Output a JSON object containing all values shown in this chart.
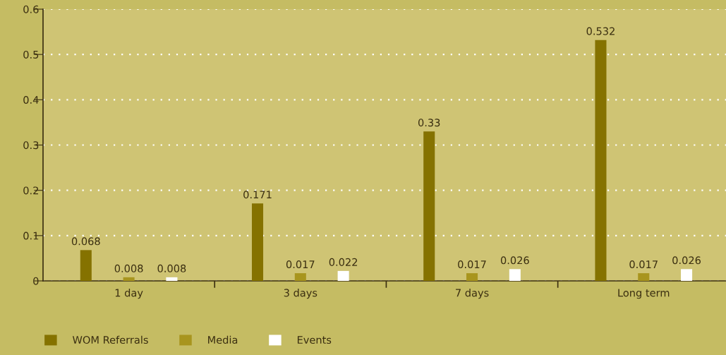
{
  "chart_data": {
    "type": "bar",
    "categories": [
      "1 day",
      "3 days",
      "7 days",
      "Long term"
    ],
    "series": [
      {
        "name": "WOM Referrals",
        "color": "#857200",
        "values": [
          0.068,
          0.171,
          0.33,
          0.532
        ]
      },
      {
        "name": "Media",
        "color": "#a8951e",
        "values": [
          0.008,
          0.017,
          0.017,
          0.017
        ]
      },
      {
        "name": "Events",
        "color": "#ffffff",
        "values": [
          0.008,
          0.022,
          0.026,
          0.026
        ]
      }
    ],
    "ylim": [
      0,
      0.6
    ],
    "yticks": [
      0,
      0.1,
      0.2,
      0.3,
      0.4,
      0.5,
      0.6
    ],
    "grid": "y",
    "legend": "bottom left",
    "data_labels": true
  }
}
